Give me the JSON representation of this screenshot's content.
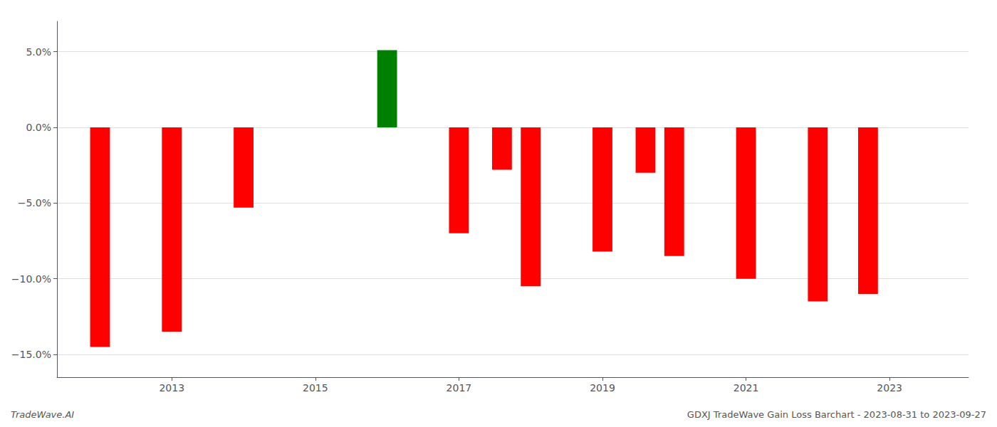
{
  "chart_data": {
    "type": "bar",
    "title": "GDXJ TradeWave Gain Loss Barchart - 2023-08-31 to 2023-09-27",
    "annotations": [
      "TradeWave.AI"
    ],
    "x": [
      2012,
      2013,
      2014,
      2016,
      2017,
      2017.6,
      2018,
      2019,
      2019.6,
      2020,
      2021,
      2022,
      2022.7
    ],
    "values": [
      -14.5,
      -13.5,
      -5.3,
      5.1,
      -7.0,
      -2.8,
      -10.5,
      -8.2,
      -3.0,
      -8.5,
      -10.0,
      -11.5,
      -11.0
    ],
    "colors": [
      "#ff0000",
      "#ff0000",
      "#ff0000",
      "#008000",
      "#ff0000",
      "#ff0000",
      "#ff0000",
      "#ff0000",
      "#ff0000",
      "#ff0000",
      "#ff0000",
      "#ff0000",
      "#ff0000"
    ],
    "xlim": [
      2011.4,
      2024.1
    ],
    "xticks": [
      2013,
      2015,
      2017,
      2019,
      2021,
      2023
    ],
    "ylim": [
      -16.5,
      7.0
    ],
    "yticks": [
      {
        "value": 5.0,
        "label": "5.0%"
      },
      {
        "value": 0.0,
        "label": "0.0%"
      },
      {
        "value": -5.0,
        "label": "−5.0%"
      },
      {
        "value": -10.0,
        "label": "−10.0%"
      },
      {
        "value": -15.0,
        "label": "−15.0%"
      }
    ],
    "grid": true
  }
}
